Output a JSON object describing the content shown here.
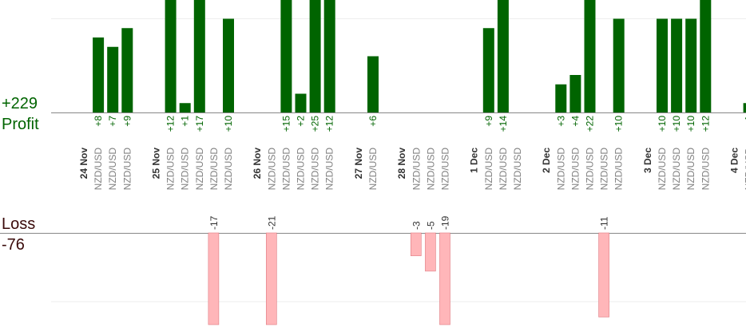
{
  "summary": {
    "profit_total": "+229",
    "profit_label": "Profit",
    "loss_label": "Loss",
    "loss_total": "-76"
  },
  "colors": {
    "profit_bar": "#006400",
    "profit_text": "#006400",
    "loss_bar": "#ffb6b9",
    "loss_bar_edge": "#e07a80",
    "pair_text": "#808080",
    "date_text": "#333333",
    "grid": "#eeeeee",
    "axis": "#888888"
  },
  "chart_data": {
    "type": "bar",
    "title": "",
    "grid": true,
    "profit_range": [
      0,
      12
    ],
    "loss_range": [
      -12,
      0
    ],
    "columns": [
      {
        "kind": "date",
        "label": "24 Nov"
      },
      {
        "kind": "trade",
        "pair": "NZD/USD",
        "profit": 8
      },
      {
        "kind": "trade",
        "pair": "NZD/USD",
        "profit": 7
      },
      {
        "kind": "trade",
        "pair": "NZD/USD",
        "profit": 9
      },
      {
        "kind": "gap"
      },
      {
        "kind": "date",
        "label": "25 Nov"
      },
      {
        "kind": "trade",
        "pair": "NZD/USD",
        "profit": 12
      },
      {
        "kind": "trade",
        "pair": "NZD/USD",
        "profit": 1
      },
      {
        "kind": "trade",
        "pair": "NZD/USD",
        "profit": 17
      },
      {
        "kind": "trade",
        "pair": "NZD/USD",
        "loss": -17
      },
      {
        "kind": "trade",
        "pair": "NZD/USD",
        "profit": 10
      },
      {
        "kind": "gap"
      },
      {
        "kind": "date",
        "label": "26 Nov"
      },
      {
        "kind": "trade",
        "pair": "NZD/USD",
        "loss": -21
      },
      {
        "kind": "trade",
        "pair": "NZD/USD",
        "profit": 15
      },
      {
        "kind": "trade",
        "pair": "NZD/USD",
        "profit": 2
      },
      {
        "kind": "trade",
        "pair": "NZD/USD",
        "profit": 25
      },
      {
        "kind": "trade",
        "pair": "NZD/USD",
        "profit": 12
      },
      {
        "kind": "gap"
      },
      {
        "kind": "date",
        "label": "27 Nov"
      },
      {
        "kind": "trade",
        "pair": "NZD/USD",
        "profit": 6
      },
      {
        "kind": "gap"
      },
      {
        "kind": "date",
        "label": "28 Nov"
      },
      {
        "kind": "trade",
        "pair": "NZD/USD",
        "loss": -3
      },
      {
        "kind": "trade",
        "pair": "NZD/USD",
        "loss": -5
      },
      {
        "kind": "trade",
        "pair": "NZD/USD",
        "loss": -19
      },
      {
        "kind": "gap"
      },
      {
        "kind": "date",
        "label": "1 Dec"
      },
      {
        "kind": "trade",
        "pair": "NZD/USD",
        "profit": 9
      },
      {
        "kind": "trade",
        "pair": "NZD/USD",
        "profit": 14
      },
      {
        "kind": "trade",
        "pair": "NZD/USD"
      },
      {
        "kind": "gap"
      },
      {
        "kind": "date",
        "label": "2 Dec"
      },
      {
        "kind": "trade",
        "pair": "NZD/USD",
        "profit": 3
      },
      {
        "kind": "trade",
        "pair": "NZD/USD",
        "profit": 4
      },
      {
        "kind": "trade",
        "pair": "NZD/USD",
        "profit": 22
      },
      {
        "kind": "trade",
        "pair": "NZD/USD",
        "loss": -11
      },
      {
        "kind": "trade",
        "pair": "NZD/USD",
        "profit": 10
      },
      {
        "kind": "gap"
      },
      {
        "kind": "date",
        "label": "3 Dec"
      },
      {
        "kind": "trade",
        "pair": "NZD/USD",
        "profit": 10
      },
      {
        "kind": "trade",
        "pair": "NZD/USD",
        "profit": 10
      },
      {
        "kind": "trade",
        "pair": "NZD/USD",
        "profit": 10
      },
      {
        "kind": "trade",
        "pair": "NZD/USD",
        "profit": 12
      },
      {
        "kind": "gap"
      },
      {
        "kind": "date",
        "label": "4 Dec"
      },
      {
        "kind": "trade",
        "pair": "NZD/USD",
        "profit": 1
      }
    ]
  }
}
